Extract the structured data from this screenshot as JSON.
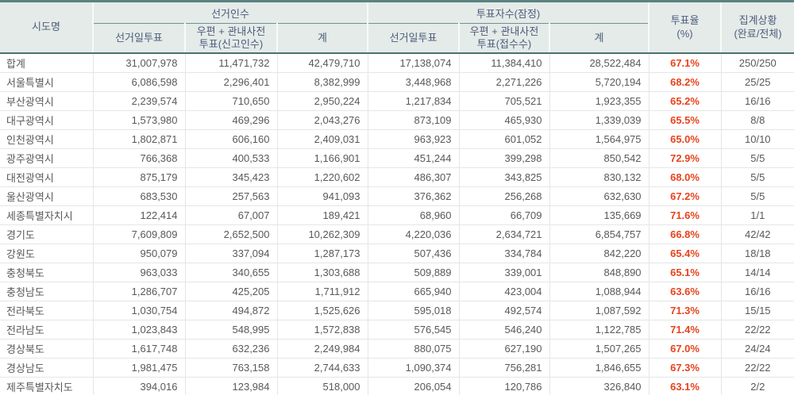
{
  "table": {
    "header": {
      "sido": "시도명",
      "electors_group": "선거인수",
      "voters_group": "투표자수(잠정)",
      "election_day": "선거일투표",
      "mail_l1": "우편 + 관내사전",
      "mail_declared_l2": "투표(신고인수)",
      "mail_received_l2": "투표(접수수)",
      "total": "계",
      "turnout_l1": "투표율",
      "turnout_l2": "(%)",
      "status_l1": "집계상황",
      "status_l2": "(완료/전체)"
    }
  },
  "colors": {
    "top_border": "#5c8181",
    "header_bg": "#e4ebe8",
    "header_text": "#4e5c7c",
    "header_separator": "#f7faf9",
    "group_underline": "#729191",
    "header_bottom_border": "#4a7272",
    "grid_line": "#e3e7e5",
    "data_text": "#595959",
    "turnout_text": "#e8431c"
  },
  "chart_data": {
    "type": "table",
    "title": "시도별 선거인수 및 투표자수(잠정) 집계",
    "columns": [
      "시도명",
      "선거인수-선거일투표",
      "선거인수-우편 + 관내사전투표(신고인수)",
      "선거인수-계",
      "투표자수(잠정)-선거일투표",
      "투표자수(잠정)-우편 + 관내사전투표(접수수)",
      "투표자수(잠정)-계",
      "투표율(%)",
      "집계상황(완료/전체)"
    ],
    "rows": [
      [
        "합계",
        "31,007,978",
        "11,471,732",
        "42,479,710",
        "17,138,074",
        "11,384,410",
        "28,522,484",
        "67.1%",
        "250/250"
      ],
      [
        "서울특별시",
        "6,086,598",
        "2,296,401",
        "8,382,999",
        "3,448,968",
        "2,271,226",
        "5,720,194",
        "68.2%",
        "25/25"
      ],
      [
        "부산광역시",
        "2,239,574",
        "710,650",
        "2,950,224",
        "1,217,834",
        "705,521",
        "1,923,355",
        "65.2%",
        "16/16"
      ],
      [
        "대구광역시",
        "1,573,980",
        "469,296",
        "2,043,276",
        "873,109",
        "465,930",
        "1,339,039",
        "65.5%",
        "8/8"
      ],
      [
        "인천광역시",
        "1,802,871",
        "606,160",
        "2,409,031",
        "963,923",
        "601,052",
        "1,564,975",
        "65.0%",
        "10/10"
      ],
      [
        "광주광역시",
        "766,368",
        "400,533",
        "1,166,901",
        "451,244",
        "399,298",
        "850,542",
        "72.9%",
        "5/5"
      ],
      [
        "대전광역시",
        "875,179",
        "345,423",
        "1,220,602",
        "486,307",
        "343,825",
        "830,132",
        "68.0%",
        "5/5"
      ],
      [
        "울산광역시",
        "683,530",
        "257,563",
        "941,093",
        "376,362",
        "256,268",
        "632,630",
        "67.2%",
        "5/5"
      ],
      [
        "세종특별자치시",
        "122,414",
        "67,007",
        "189,421",
        "68,960",
        "66,709",
        "135,669",
        "71.6%",
        "1/1"
      ],
      [
        "경기도",
        "7,609,809",
        "2,652,500",
        "10,262,309",
        "4,220,036",
        "2,634,721",
        "6,854,757",
        "66.8%",
        "42/42"
      ],
      [
        "강원도",
        "950,079",
        "337,094",
        "1,287,173",
        "507,436",
        "334,784",
        "842,220",
        "65.4%",
        "18/18"
      ],
      [
        "충청북도",
        "963,033",
        "340,655",
        "1,303,688",
        "509,889",
        "339,001",
        "848,890",
        "65.1%",
        "14/14"
      ],
      [
        "충청남도",
        "1,286,707",
        "425,205",
        "1,711,912",
        "665,940",
        "423,004",
        "1,088,944",
        "63.6%",
        "16/16"
      ],
      [
        "전라북도",
        "1,030,754",
        "494,872",
        "1,525,626",
        "595,018",
        "492,574",
        "1,087,592",
        "71.3%",
        "15/15"
      ],
      [
        "전라남도",
        "1,023,843",
        "548,995",
        "1,572,838",
        "576,545",
        "546,240",
        "1,122,785",
        "71.4%",
        "22/22"
      ],
      [
        "경상북도",
        "1,617,748",
        "632,236",
        "2,249,984",
        "880,075",
        "627,190",
        "1,507,265",
        "67.0%",
        "24/24"
      ],
      [
        "경상남도",
        "1,981,475",
        "763,158",
        "2,744,633",
        "1,090,374",
        "756,281",
        "1,846,655",
        "67.3%",
        "22/22"
      ],
      [
        "제주특별자치도",
        "394,016",
        "123,984",
        "518,000",
        "206,054",
        "120,786",
        "326,840",
        "63.1%",
        "2/2"
      ]
    ]
  }
}
